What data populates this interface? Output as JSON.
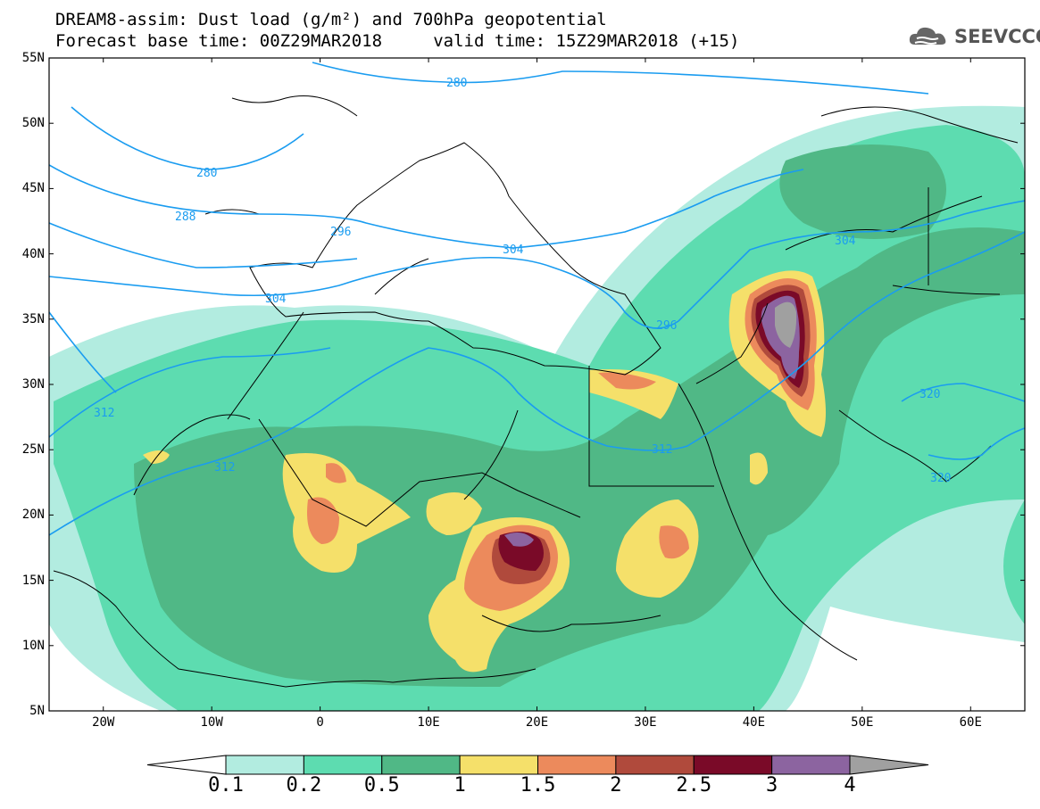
{
  "title": {
    "line1": "DREAM8-assim: Dust load (g/m²) and 700hPa geopotential",
    "line2": "Forecast base time: 00Z29MAR2018     valid time: 15Z29MAR2018 (+15)"
  },
  "logo": {
    "text": "SEEVCCC",
    "icon": "cloud-logo-icon"
  },
  "map": {
    "lat_labels": [
      "55N",
      "50N",
      "45N",
      "40N",
      "35N",
      "30N",
      "25N",
      "20N",
      "15N",
      "10N",
      "5N"
    ],
    "lon_labels": [
      "20W",
      "10W",
      "0",
      "10E",
      "20E",
      "30E",
      "40E",
      "50E",
      "60E"
    ],
    "lat_range": [
      5,
      55
    ],
    "lon_range": [
      -25,
      65
    ],
    "contour_labels": [
      {
        "text": "280"
      },
      {
        "text": "280"
      },
      {
        "text": "288"
      },
      {
        "text": "296"
      },
      {
        "text": "304"
      },
      {
        "text": "304"
      },
      {
        "text": "304"
      },
      {
        "text": "296"
      },
      {
        "text": "312"
      },
      {
        "text": "312"
      },
      {
        "text": "312"
      },
      {
        "text": "320"
      },
      {
        "text": "320"
      }
    ],
    "contour_color": "#1a9cf0"
  },
  "colorbar": {
    "labels": [
      "0.1",
      "0.2",
      "0.5",
      "1",
      "1.5",
      "2",
      "2.5",
      "3",
      "4"
    ],
    "colors": [
      "#ffffff",
      "#b2ece0",
      "#5ddcb0",
      "#50b886",
      "#f5e06a",
      "#ec8a5c",
      "#b04a3c",
      "#7a0a28",
      "#8c64a0",
      "#a0a0a0"
    ]
  }
}
